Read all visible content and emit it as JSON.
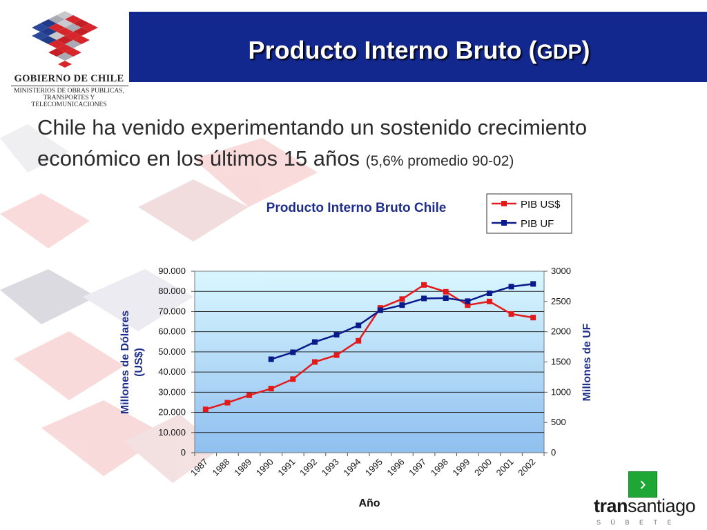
{
  "header": {
    "title_main": "Producto Interno Bruto (",
    "title_gdp": "GDP",
    "title_close": ")"
  },
  "logo": {
    "name": "GOBIERNO DE CHILE",
    "line1": "MINISTERIOS DE OBRAS PUBLICAS,",
    "line2": "TRANSPORTES Y",
    "line3": "TELECOMUNICACIONES"
  },
  "intro": {
    "main": "Chile ha venido experimentando un sostenido crecimiento económico en los últimos 15 años",
    "note": "(5,6% promedio 90-02)"
  },
  "chart_data": {
    "type": "line",
    "title": "Producto Interno Bruto Chile",
    "xlabel": "Año",
    "ylabel_left": "Millones de Dólares (US$)",
    "ylabel_right": "Millones de UF",
    "categories": [
      "1987",
      "1988",
      "1989",
      "1990",
      "1991",
      "1992",
      "1993",
      "1994",
      "1995",
      "1996",
      "1997",
      "1998",
      "1999",
      "2000",
      "2001",
      "2002"
    ],
    "yticks_left": [
      "0",
      "10.000",
      "20.000",
      "30.000",
      "40.000",
      "50.000",
      "60.000",
      "70.000",
      "80.000",
      "90.000"
    ],
    "yticks_right": [
      "0",
      "500",
      "1000",
      "1500",
      "2000",
      "2500",
      "3000"
    ],
    "ylim_left": [
      0,
      90000
    ],
    "ylim_right": [
      0,
      3000
    ],
    "grid": true,
    "legend_position": "top-right",
    "series": [
      {
        "name": "PIB US$",
        "axis": "left",
        "color": "#e31a1c",
        "values": [
          21500,
          24800,
          28500,
          31800,
          36500,
          45000,
          48400,
          55500,
          71800,
          76200,
          83200,
          79800,
          73200,
          75000,
          68800,
          67000
        ]
      },
      {
        "name": "PIB UF",
        "axis": "right",
        "color": "#0a1a8a",
        "values": [
          null,
          null,
          null,
          1545,
          1660,
          1830,
          1950,
          2105,
          2355,
          2440,
          2550,
          2555,
          2505,
          2635,
          2745,
          2790
        ]
      }
    ]
  },
  "nav": {
    "next_symbol": "›"
  },
  "brand": {
    "bold": "tran",
    "regular": "santiago",
    "tagline": "SÚBETE"
  }
}
